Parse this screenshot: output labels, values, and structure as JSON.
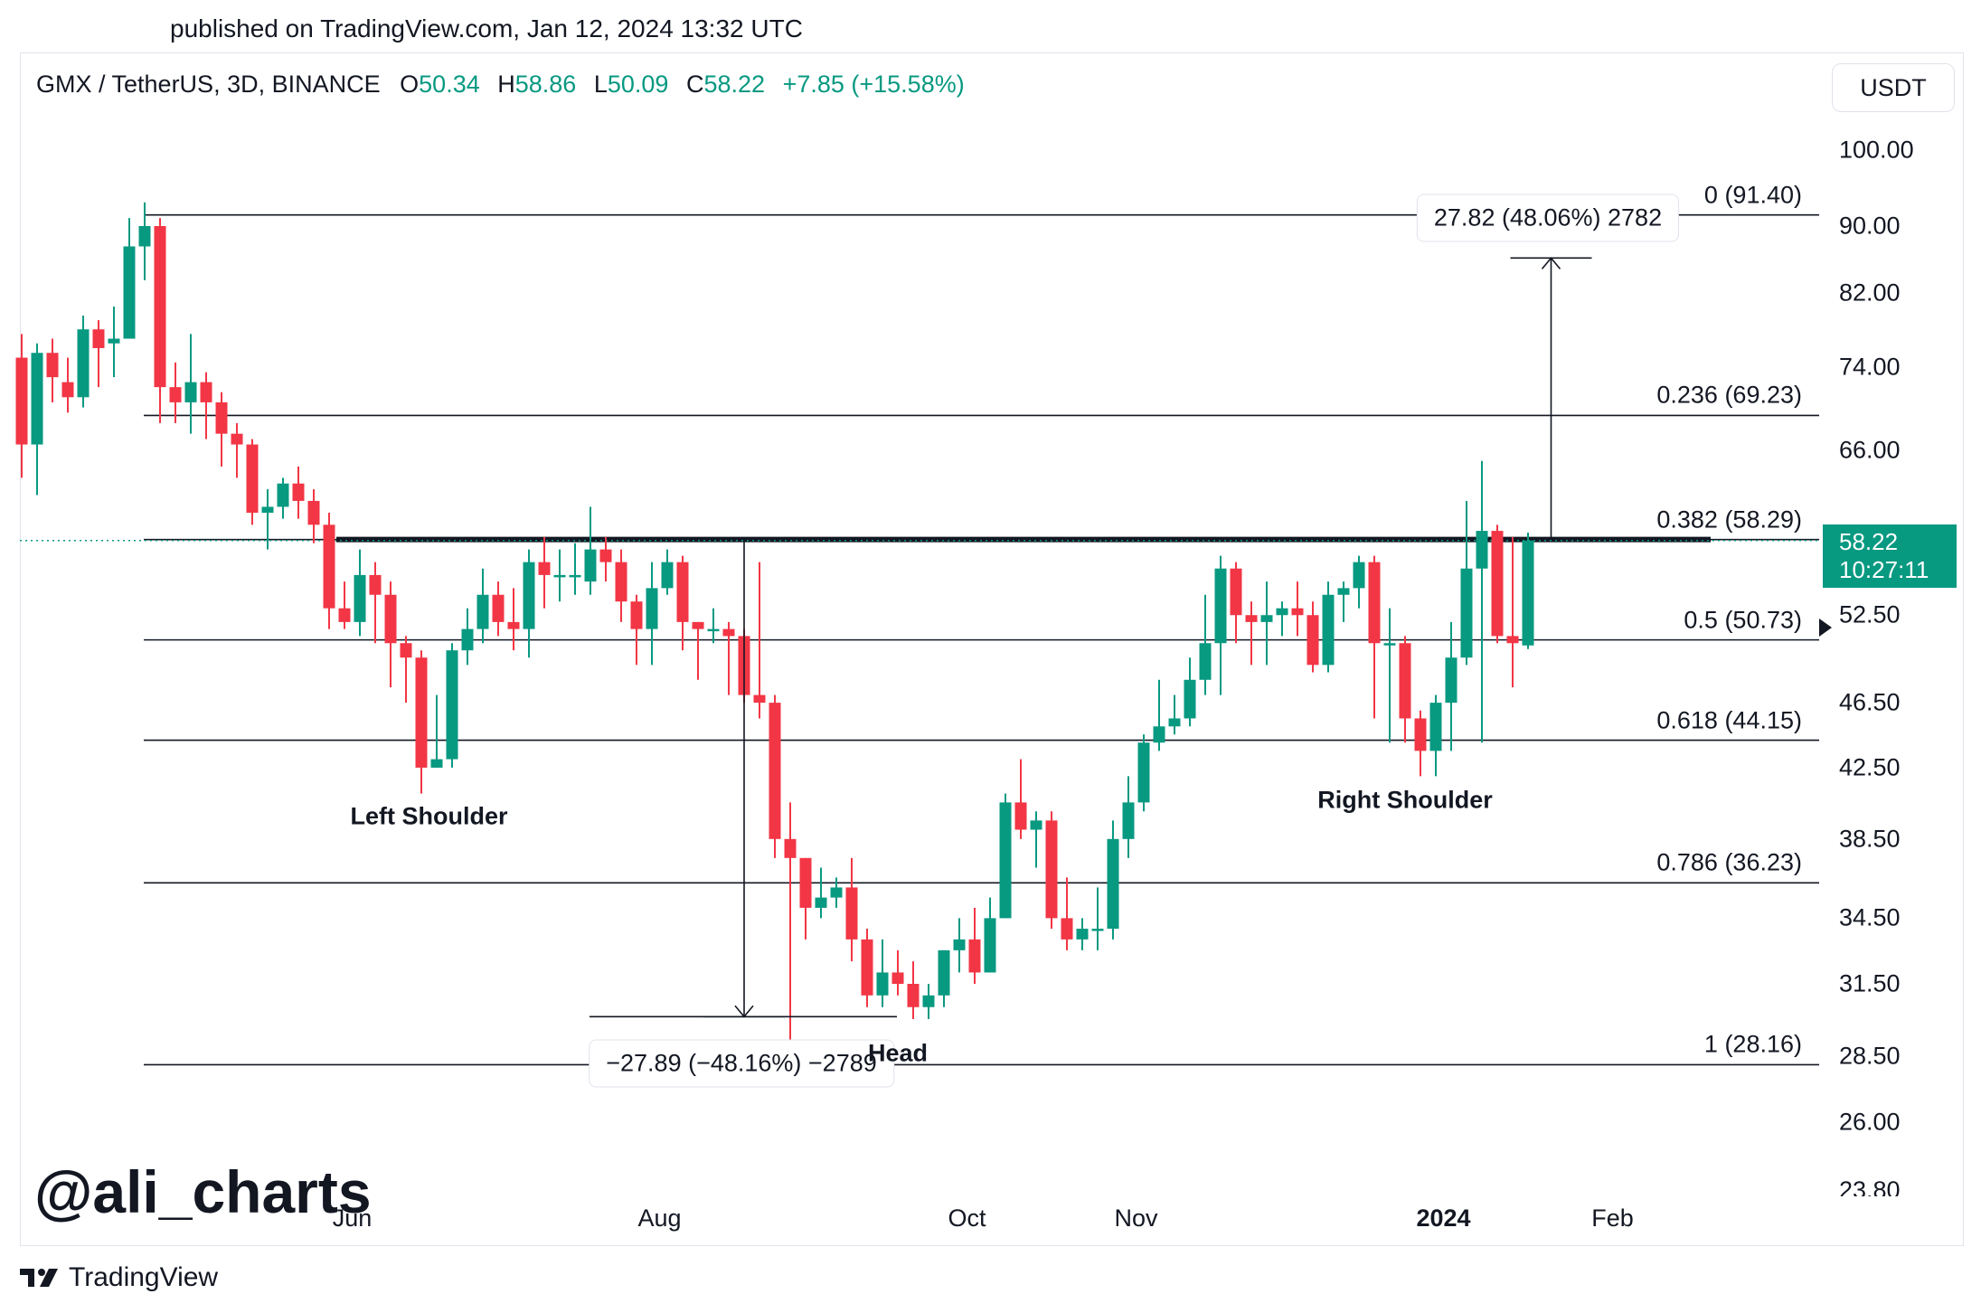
{
  "published": "published on TradingView.com, Jan 12, 2024 13:32 UTC",
  "header": {
    "symbol": "GMX / TetherUS, 3D, BINANCE",
    "o_label": "O",
    "o": "50.34",
    "h_label": "H",
    "h": "58.86",
    "l_label": "L",
    "l": "50.09",
    "c_label": "C",
    "c": "58.22",
    "change": "+7.85 (+15.58%)"
  },
  "unit": "USDT",
  "price_tag": {
    "price": "58.22",
    "countdown": "10:27:11"
  },
  "watermark": "@ali_charts",
  "brand": "TradingView",
  "colors": {
    "up": "#089981",
    "down": "#f23645",
    "text": "#131722"
  },
  "chart_data": {
    "type": "candlestick",
    "y_scale": "log",
    "y_ticks": [
      "100.00",
      "90.00",
      "82.00",
      "74.00",
      "66.00",
      "58.22",
      "52.50",
      "46.50",
      "42.50",
      "38.50",
      "34.50",
      "31.50",
      "28.50",
      "26.00",
      "23.80"
    ],
    "x_ticks": [
      {
        "label": "Jun",
        "bold": false,
        "idx": 21.5
      },
      {
        "label": "Aug",
        "bold": false,
        "idx": 41.5
      },
      {
        "label": "Oct",
        "bold": false,
        "idx": 61.5
      },
      {
        "label": "Nov",
        "bold": false,
        "idx": 72.5
      },
      {
        "label": "2024",
        "bold": true,
        "idx": 92.5
      },
      {
        "label": "Feb",
        "bold": false,
        "idx": 103.5
      }
    ],
    "fib_levels": [
      {
        "label": "0 (91.40)",
        "value": 91.4
      },
      {
        "label": "0.236 (69.23)",
        "value": 69.23
      },
      {
        "label": "0.382 (58.29)",
        "value": 58.29
      },
      {
        "label": "0.5 (50.73)",
        "value": 50.73
      },
      {
        "label": "0.618 (44.15)",
        "value": 44.15
      },
      {
        "label": "0.786 (36.23)",
        "value": 36.23
      },
      {
        "label": "1 (28.16)",
        "value": 28.16
      }
    ],
    "neckline": 58.3,
    "annotations": [
      {
        "text": "Left Shoulder",
        "idx": 26.5,
        "value": 39.7
      },
      {
        "text": "Head",
        "idx": 57,
        "value": 28.6
      },
      {
        "text": "Right Shoulder",
        "idx": 90,
        "value": 40.6
      }
    ],
    "measures": [
      {
        "text": "27.82 (48.06%) 2782",
        "from": 58.3,
        "to": 86.1,
        "idx": 99.5
      },
      {
        "text": "−27.89 (−48.16%) −2789",
        "from": 58.3,
        "to": 30.1,
        "idx": 47
      }
    ],
    "candles": [
      [
        75.0,
        66.5,
        77.5,
        63.5
      ],
      [
        66.5,
        75.5,
        76.5,
        62.0
      ],
      [
        75.5,
        73.0,
        77.0,
        70.5
      ],
      [
        72.5,
        71.0,
        75.0,
        69.5
      ],
      [
        71.0,
        78.0,
        79.5,
        70.0
      ],
      [
        78.0,
        76.0,
        79.0,
        72.0
      ],
      [
        76.5,
        77.0,
        80.5,
        73.0
      ],
      [
        77.0,
        87.5,
        91.0,
        77.0
      ],
      [
        87.5,
        90.0,
        93.0,
        83.5
      ],
      [
        90.0,
        72.0,
        91.0,
        68.5
      ],
      [
        72.0,
        70.5,
        74.5,
        68.5
      ],
      [
        70.5,
        72.5,
        77.5,
        67.5
      ],
      [
        72.5,
        70.5,
        73.5,
        67.0
      ],
      [
        70.5,
        67.5,
        71.5,
        64.5
      ],
      [
        67.5,
        66.5,
        68.5,
        63.5
      ],
      [
        66.5,
        60.5,
        67.0,
        59.5
      ],
      [
        60.5,
        61.0,
        62.5,
        57.5
      ],
      [
        61.0,
        63.0,
        63.5,
        60.0
      ],
      [
        63.0,
        61.5,
        64.5,
        60.0
      ],
      [
        61.5,
        59.5,
        62.5,
        58.0
      ],
      [
        59.5,
        53.0,
        60.5,
        51.5
      ],
      [
        53.0,
        52.0,
        55.0,
        51.5
      ],
      [
        52.0,
        55.5,
        57.5,
        51.0
      ],
      [
        55.5,
        54.0,
        56.5,
        50.5
      ],
      [
        54.0,
        50.5,
        55.0,
        47.5
      ],
      [
        50.5,
        49.5,
        51.0,
        46.5
      ],
      [
        49.5,
        42.5,
        50.0,
        41.0
      ],
      [
        42.5,
        43.0,
        47.0,
        42.5
      ],
      [
        43.0,
        50.0,
        50.5,
        42.5
      ],
      [
        50.0,
        51.5,
        53.0,
        49.0
      ],
      [
        51.5,
        54.0,
        56.0,
        50.5
      ],
      [
        54.0,
        52.0,
        55.0,
        51.0
      ],
      [
        52.0,
        51.5,
        54.5,
        50.0
      ],
      [
        51.5,
        56.5,
        57.5,
        49.5
      ],
      [
        56.5,
        55.5,
        58.5,
        53.0
      ],
      [
        55.5,
        55.5,
        57.5,
        53.5
      ],
      [
        55.5,
        55.5,
        58.0,
        54.0
      ],
      [
        55.0,
        57.5,
        61.0,
        54.0
      ],
      [
        57.5,
        56.5,
        58.5,
        55.0
      ],
      [
        56.5,
        53.5,
        57.5,
        52.0
      ],
      [
        53.5,
        51.5,
        54.0,
        49.0
      ],
      [
        51.5,
        54.5,
        56.5,
        49.0
      ],
      [
        54.5,
        56.5,
        57.5,
        54.0
      ],
      [
        56.5,
        52.0,
        57.0,
        50.0
      ],
      [
        52.0,
        51.5,
        52.0,
        48.0
      ],
      [
        51.5,
        51.5,
        53.0,
        50.5
      ],
      [
        51.5,
        51.0,
        52.0,
        47.0
      ],
      [
        51.0,
        47.0,
        51.5,
        46.5
      ],
      [
        47.0,
        46.5,
        56.5,
        45.5
      ],
      [
        46.5,
        38.5,
        47.0,
        37.5
      ],
      [
        38.5,
        37.5,
        40.5,
        28.0
      ],
      [
        37.5,
        35.0,
        37.5,
        33.5
      ],
      [
        35.0,
        35.5,
        37.0,
        34.5
      ],
      [
        35.5,
        36.0,
        36.5,
        35.0
      ],
      [
        36.0,
        33.5,
        37.5,
        32.5
      ],
      [
        33.5,
        31.0,
        34.0,
        30.5
      ],
      [
        31.0,
        32.0,
        33.5,
        30.5
      ],
      [
        32.0,
        31.5,
        33.0,
        31.0
      ],
      [
        31.5,
        30.5,
        32.5,
        30.0
      ],
      [
        30.5,
        31.0,
        31.5,
        30.0
      ],
      [
        31.0,
        33.0,
        33.0,
        30.5
      ],
      [
        33.0,
        33.5,
        34.5,
        32.0
      ],
      [
        33.5,
        32.0,
        35.0,
        31.5
      ],
      [
        32.0,
        34.5,
        35.5,
        32.0
      ],
      [
        34.5,
        40.5,
        41.0,
        34.5
      ],
      [
        40.5,
        39.0,
        43.0,
        38.5
      ],
      [
        39.0,
        39.5,
        40.0,
        37.0
      ],
      [
        39.5,
        34.5,
        40.0,
        34.0
      ],
      [
        34.5,
        33.5,
        36.5,
        33.0
      ],
      [
        33.5,
        34.0,
        34.5,
        33.0
      ],
      [
        34.0,
        34.0,
        36.0,
        33.0
      ],
      [
        34.0,
        38.5,
        39.5,
        33.5
      ],
      [
        38.5,
        40.5,
        42.0,
        37.5
      ],
      [
        40.5,
        44.0,
        44.5,
        40.0
      ],
      [
        44.0,
        45.0,
        48.0,
        43.5
      ],
      [
        45.0,
        45.5,
        47.0,
        44.5
      ],
      [
        45.5,
        48.0,
        49.5,
        45.0
      ],
      [
        48.0,
        50.5,
        54.0,
        47.0
      ],
      [
        50.5,
        56.0,
        57.0,
        47.0
      ],
      [
        56.0,
        52.5,
        56.5,
        50.5
      ],
      [
        52.5,
        52.0,
        53.5,
        49.0
      ],
      [
        52.0,
        52.5,
        55.0,
        49.0
      ],
      [
        52.5,
        53.0,
        53.5,
        51.0
      ],
      [
        53.0,
        52.5,
        55.0,
        51.0
      ],
      [
        52.5,
        49.0,
        53.5,
        48.5
      ],
      [
        49.0,
        54.0,
        55.0,
        48.5
      ],
      [
        54.0,
        54.5,
        55.0,
        52.0
      ],
      [
        54.5,
        56.5,
        57.0,
        53.0
      ],
      [
        56.5,
        50.5,
        57.0,
        45.5
      ],
      [
        50.5,
        50.5,
        53.0,
        44.0
      ],
      [
        50.5,
        45.5,
        51.0,
        44.0
      ],
      [
        45.5,
        43.5,
        46.0,
        42.0
      ],
      [
        43.5,
        46.5,
        47.0,
        42.0
      ],
      [
        46.5,
        49.5,
        52.0,
        43.5
      ],
      [
        49.5,
        56.0,
        61.5,
        49.0
      ],
      [
        56.0,
        59.0,
        65.0,
        44.0
      ],
      [
        59.0,
        51.0,
        59.5,
        50.5
      ],
      [
        51.0,
        50.5,
        58.5,
        47.5
      ],
      [
        50.34,
        58.22,
        58.86,
        50.09
      ]
    ]
  }
}
